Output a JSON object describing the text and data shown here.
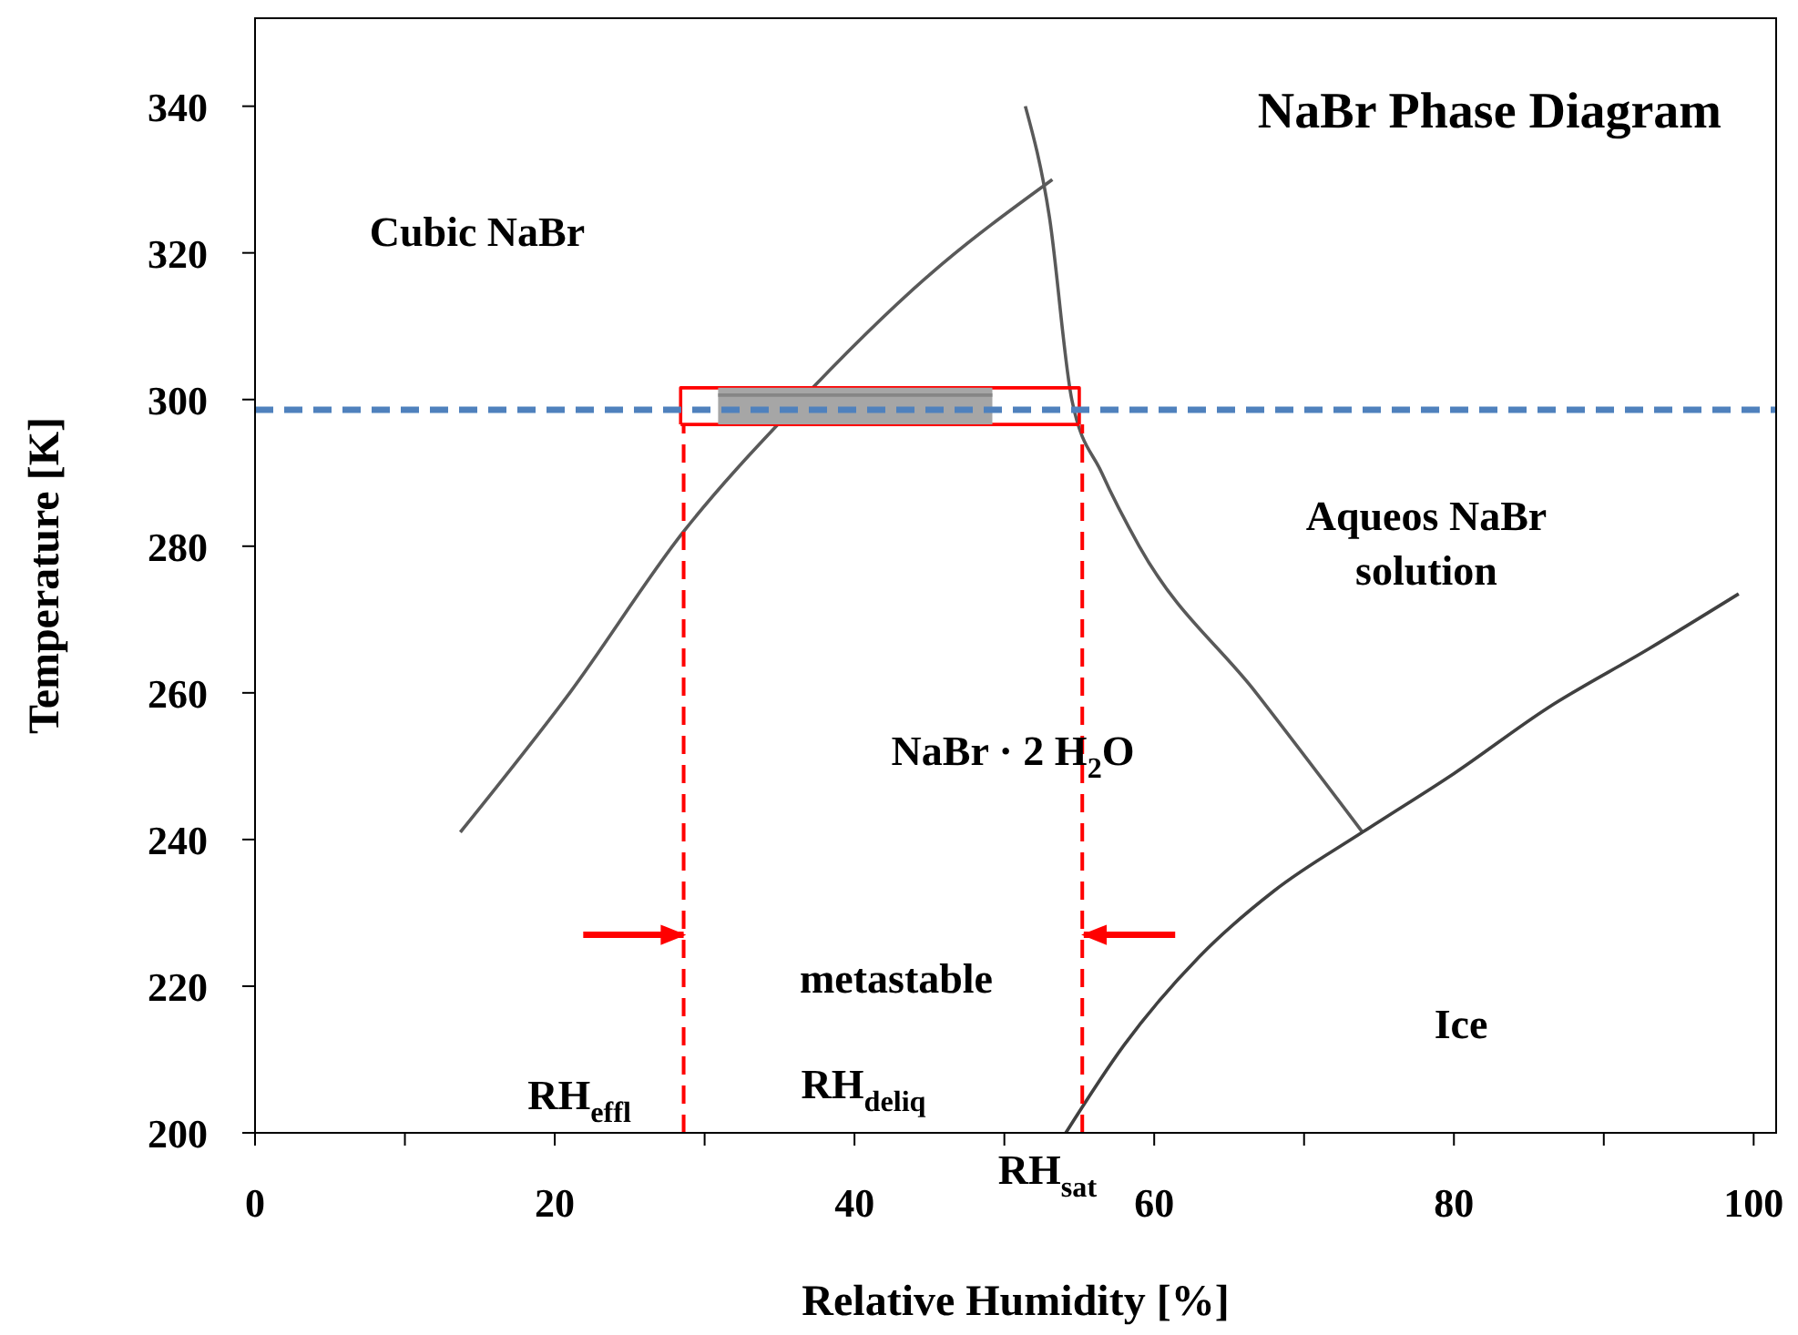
{
  "chart_data": {
    "type": "line",
    "title": "NaBr Phase Diagram",
    "xlabel": "Relative Humidity [%]",
    "ylabel": "Temperature [K]",
    "xlim": [
      0,
      101.5
    ],
    "ylim": [
      200,
      352
    ],
    "xticks": [
      0,
      {
        "value": 10,
        "label": null
      },
      20,
      {
        "value": 30,
        "label": null
      },
      40,
      {
        "value": 50,
        "label": null
      },
      60,
      {
        "value": 70,
        "label": null
      },
      80,
      {
        "value": 90,
        "label": null
      },
      100
    ],
    "yticks": [
      200,
      220,
      240,
      260,
      280,
      300,
      320,
      340
    ],
    "marker": "none",
    "ref_lines": [
      {
        "axis": "y",
        "value": 298.6,
        "color": "#4f81bd",
        "line_style": "dashed"
      }
    ],
    "series": [
      {
        "color": "#595959",
        "x": [
          13.7,
          21,
          28.6,
          36,
          45,
          53.2
        ],
        "values": [
          241,
          260,
          282,
          299,
          317,
          330
        ]
      },
      {
        "color": "#595959",
        "x": [
          51.4,
          53,
          54.5,
          56.5,
          59,
          66.8,
          73.9
        ],
        "values": [
          340,
          325,
          300,
          290,
          280,
          260,
          241
        ]
      },
      {
        "color": "#404040",
        "x": [
          54.1,
          58,
          63,
          68,
          73.9,
          80,
          86.3,
          93,
          99
        ],
        "values": [
          200,
          212,
          224,
          233,
          241,
          249,
          258,
          266,
          273.5
        ]
      },
      {
        "color": "#ff0000",
        "x": [
          28.4,
          28.4,
          55,
          55
        ],
        "values": [
          296.6,
          301.6,
          301.6,
          296.6
        ]
      },
      {
        "color": "#ff0000",
        "x": [
          28.4,
          41.7,
          55
        ],
        "values": [
          296.6,
          296.6,
          296.6
        ]
      },
      {
        "color": "#ff0000",
        "line_style": "dashed",
        "x": [
          28.6,
          28.6
        ],
        "values": [
          200,
          296.6
        ]
      },
      {
        "color": "#ff0000",
        "line_style": "dashed",
        "x": [
          55.2,
          55.2
        ],
        "values": [
          200,
          296.6
        ]
      },
      {
        "color": "#ff0000",
        "x": [
          21.9,
          28.6
        ],
        "values": [
          227,
          227
        ]
      },
      {
        "color": "#ff0000",
        "x": [
          61.4,
          55.3
        ],
        "values": [
          227,
          227
        ]
      },
      {
        "color": "#868686",
        "x": [
          30.9,
          49.2
        ],
        "values": [
          300.6,
          300.6
        ],
        "lower": [
          296.6,
          296.6
        ],
        "upper": [
          301.6,
          301.6
        ]
      }
    ],
    "annotations": [
      "Cubic NaBr",
      "Aqueos NaBr\nsolution",
      "NaBr · 2 H$_{2}$O",
      "metastable",
      "Ice",
      "RH$_{effl}$",
      "RH$_{deliq}$",
      "RH$_{sat}$"
    ]
  }
}
